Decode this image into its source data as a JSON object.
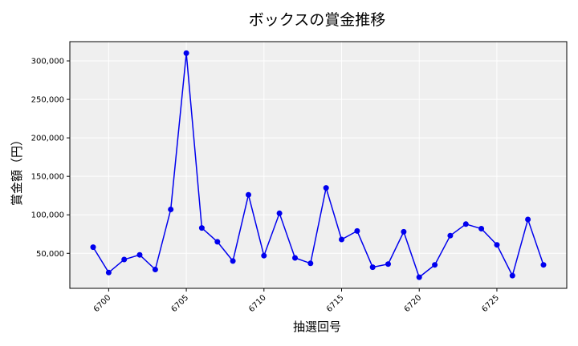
{
  "chart_data": {
    "type": "line",
    "title": "ボックスの賞金推移",
    "xlabel": "抽選回号",
    "ylabel": "賞金額（円）",
    "x": [
      6699,
      6700,
      6701,
      6702,
      6703,
      6704,
      6705,
      6706,
      6707,
      6708,
      6709,
      6710,
      6711,
      6712,
      6713,
      6714,
      6715,
      6716,
      6717,
      6718,
      6719,
      6720,
      6721,
      6722,
      6723,
      6724,
      6725,
      6726,
      6727,
      6728
    ],
    "series": [
      {
        "values": [
          58000,
          25000,
          42000,
          48000,
          29000,
          107000,
          310000,
          83000,
          65000,
          40000,
          126000,
          47000,
          102000,
          44000,
          37000,
          135000,
          68000,
          79000,
          32000,
          36000,
          78000,
          19000,
          35000,
          73000,
          88000,
          82000,
          61000,
          21000,
          94000,
          35000
        ],
        "color": "#0000ee"
      }
    ],
    "xticks": [
      6700,
      6705,
      6710,
      6715,
      6720,
      6725
    ],
    "xtick_labels": [
      "6700",
      "6705",
      "6710",
      "6715",
      "6720",
      "6725"
    ],
    "yticks": [
      50000,
      100000,
      150000,
      200000,
      250000,
      300000
    ],
    "ytick_labels": [
      "50,000",
      "100,000",
      "150,000",
      "200,000",
      "250,000",
      "300,000"
    ],
    "xlim": [
      6697.5,
      6729.5
    ],
    "ylim": [
      4500,
      325000
    ],
    "grid": true,
    "background": "#efefef",
    "grid_color": "#ffffff"
  }
}
